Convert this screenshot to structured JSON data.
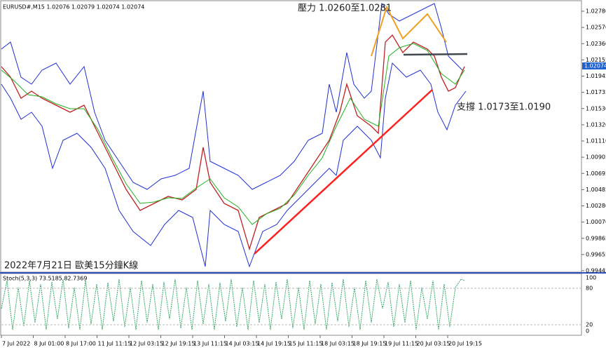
{
  "header": {
    "symbol_info": "EURUSD#,M15  1.02076 1.02079 1.02074 1.02074"
  },
  "annotations": {
    "resistance": "壓力 1.0260至1.0281",
    "support": "支撐 1.0173至1.0190",
    "caption": "2022年7月21日 歐美15分鐘K線"
  },
  "price_axis": {
    "labels": [
      "1.02780",
      "1.02570",
      "1.02360",
      "1.02155",
      "1.01945",
      "1.01735",
      "1.01530",
      "1.01320",
      "1.01110",
      "1.00905",
      "1.00695",
      "1.00485",
      "1.00280",
      "1.00070",
      "0.99865",
      "0.99655",
      "0.99445"
    ],
    "current": "1.02074"
  },
  "stoch_panel": {
    "label": "Stoch(5,3,3) 73.5185 82.7369",
    "levels": [
      "100",
      "80",
      "20",
      "0"
    ]
  },
  "time_axis": {
    "labels": [
      "7 Jul 2022",
      "8 Jul 01:00",
      "8 Jul 17:00",
      "11 Jul 11:15",
      "12 Jul 03:15",
      "12 Jul 19:15",
      "13 Jul 11:15",
      "14 Jul 03:15",
      "14 Jul 19:15",
      "15 Jul 11:15",
      "18 Jul 03:15",
      "18 Jul 19:15",
      "19 Jul 11:15",
      "20 Jul 03:15",
      "20 Jul 19:15"
    ]
  }
}
